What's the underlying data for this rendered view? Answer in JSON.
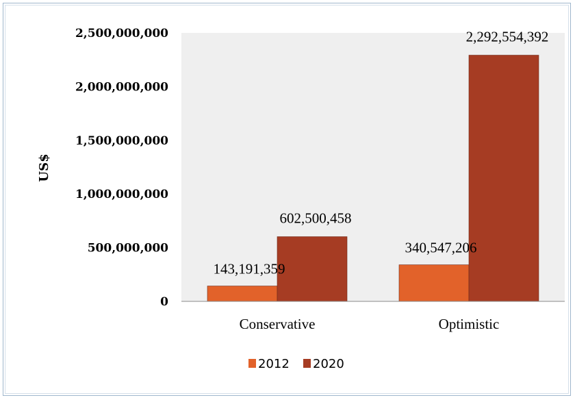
{
  "chart_data": {
    "type": "bar",
    "title": "",
    "xlabel": "",
    "ylabel": "US$",
    "ylim": [
      0,
      2500000000
    ],
    "yticks": [
      0,
      500000000,
      1000000000,
      1500000000,
      2000000000,
      2500000000
    ],
    "ytick_labels": [
      "0",
      "500,000,000",
      "1,000,000,000",
      "1,500,000,000",
      "2,000,000,000",
      "2,500,000,000"
    ],
    "categories": [
      "Conservative",
      "Optimistic"
    ],
    "series": [
      {
        "name": "2012",
        "color": "#e2622a",
        "values": [
          143191359,
          340547206
        ],
        "labels": [
          "143,191,359",
          "340,547,206"
        ]
      },
      {
        "name": "2020",
        "color": "#a63c23",
        "values": [
          602500458,
          2292554392
        ],
        "labels": [
          "602,500,458",
          "2,292,554,392"
        ]
      }
    ],
    "plot_background": "#efefef",
    "grid": false,
    "legend": "bottom"
  }
}
